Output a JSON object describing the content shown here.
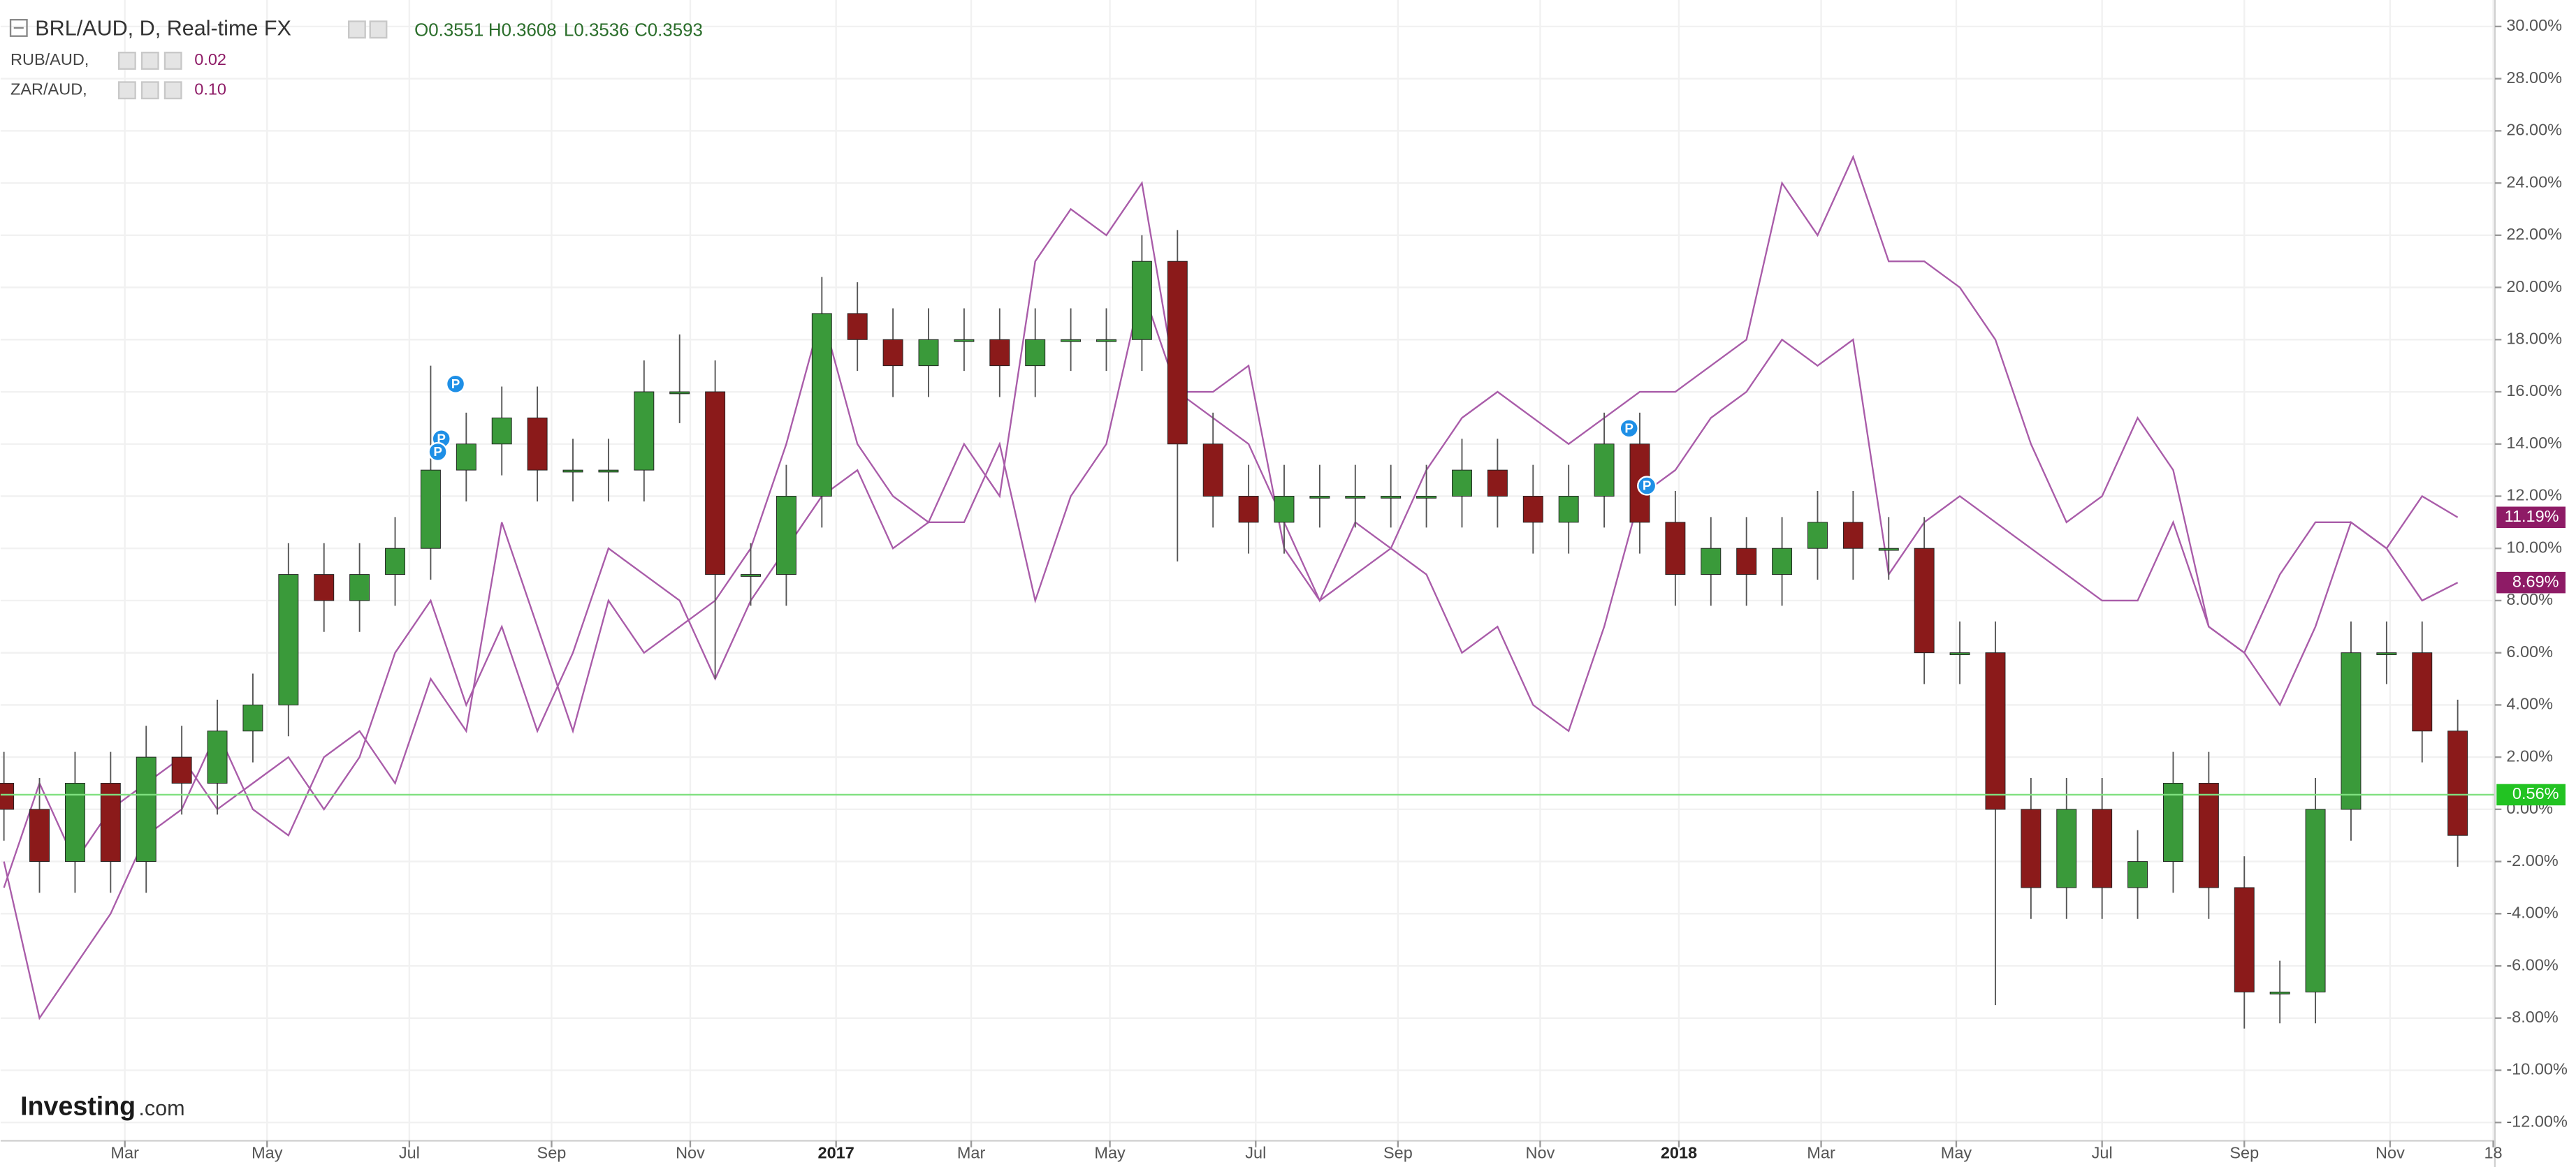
{
  "chart_data": {
    "type": "candlestick",
    "title": "BRL/AUD, D, Real-time FX",
    "ohlc_labels": [
      "O0.3551",
      "H0.3608",
      "L0.3536",
      "C0.3593"
    ],
    "up_color": "#3a9a3a",
    "down_color": "#8b1a1a",
    "open": [
      1,
      0,
      -2,
      1,
      -2,
      2,
      1,
      3,
      4,
      9,
      8,
      9,
      10,
      13,
      14,
      15,
      13,
      13,
      13,
      16,
      16,
      9,
      9,
      12,
      19,
      18,
      17,
      18,
      18,
      17,
      18,
      18,
      18,
      21,
      14,
      12,
      11,
      12,
      12,
      12,
      12,
      12,
      13,
      12,
      11,
      12,
      14,
      11,
      9,
      10,
      9,
      10,
      11,
      10,
      10,
      6,
      6,
      0,
      -3,
      0,
      -3,
      -2,
      1,
      -3,
      -7,
      -7,
      0,
      6,
      6,
      3
    ],
    "high": [
      2.2,
      1.2,
      2.2,
      2.2,
      3.2,
      3.2,
      4.2,
      5.2,
      10.2,
      10.2,
      10.2,
      11.2,
      17,
      15.2,
      16.2,
      16.2,
      14.2,
      14.2,
      17.2,
      18.2,
      17.2,
      10.2,
      13.2,
      20.4,
      20.2,
      19.2,
      19.2,
      19.2,
      19.2,
      19.2,
      19.2,
      19.2,
      22,
      22.2,
      15.2,
      13.2,
      13.2,
      13.2,
      13.2,
      13.2,
      13.2,
      14.2,
      14.2,
      13.2,
      13.2,
      15.2,
      15.2,
      12.2,
      11.2,
      11.2,
      11.2,
      12.2,
      12.2,
      11.2,
      11.2,
      7.2,
      7.2,
      1.2,
      1.2,
      1.2,
      -0.8,
      2.2,
      2.2,
      -1.8,
      -5.8,
      1.2,
      7.2,
      7.2,
      7.2,
      4.2
    ],
    "low": [
      -1.2,
      -3.2,
      -3.2,
      -3.2,
      -3.2,
      -0.2,
      -0.2,
      1.8,
      2.8,
      6.8,
      6.8,
      7.8,
      8.8,
      11.8,
      12.8,
      11.8,
      11.8,
      11.8,
      11.8,
      14.8,
      5,
      7.8,
      7.8,
      10.8,
      16.8,
      15.8,
      15.8,
      16.8,
      15.8,
      15.8,
      16.8,
      16.8,
      16.8,
      9.5,
      10.8,
      9.8,
      9.8,
      10.8,
      10.8,
      10.8,
      10.8,
      10.8,
      10.8,
      9.8,
      9.8,
      10.8,
      9.8,
      7.8,
      7.8,
      7.8,
      7.8,
      8.8,
      8.8,
      8.8,
      4.8,
      4.8,
      -7.5,
      -4.2,
      -4.2,
      -4.2,
      -4.2,
      -3.2,
      -4.2,
      -8.4,
      -8.2,
      -8.2,
      -1.2,
      4.8,
      1.8,
      -2.2
    ],
    "close": [
      0,
      -2,
      1,
      -2,
      2,
      1,
      3,
      4,
      9,
      8,
      9,
      10,
      13,
      14,
      15,
      13,
      13,
      13,
      16,
      16,
      9,
      9,
      12,
      19,
      18,
      17,
      18,
      18,
      17,
      18,
      18,
      18,
      21,
      14,
      12,
      11,
      12,
      12,
      12,
      12,
      12,
      13,
      12,
      11,
      12,
      14,
      11,
      9,
      10,
      9,
      10,
      11,
      10,
      10,
      6,
      6,
      0,
      -3,
      0,
      -3,
      -2,
      1,
      -3,
      -7,
      -7,
      0,
      6,
      6,
      3,
      -1
    ],
    "series": [
      {
        "name": "RUB/AUD,",
        "legend_value": "0.02",
        "color": "#a95ca9",
        "tag_color": "#8e1b66",
        "values": [
          -3,
          1,
          -2,
          0,
          1,
          2,
          0,
          1,
          2,
          0,
          2,
          6,
          8,
          4,
          7,
          3,
          6,
          10,
          9,
          8,
          5,
          8,
          10,
          12,
          13,
          10,
          11,
          11,
          14,
          8,
          12,
          14,
          20,
          16,
          16,
          17,
          10,
          8,
          9,
          10,
          9,
          6,
          7,
          4,
          3,
          7,
          12,
          13,
          15,
          16,
          18,
          17,
          18,
          9,
          11,
          12,
          11,
          10,
          9,
          8,
          8,
          11,
          7,
          6,
          9,
          11,
          11,
          10,
          8,
          8.69
        ],
        "last_label": {
          "value": 8.69,
          "label": "8.69%"
        }
      },
      {
        "name": "ZAR/AUD,",
        "legend_value": "0.10",
        "color": "#a95ca9",
        "tag_color": "#8e1b66",
        "values": [
          -2,
          -8,
          -6,
          -4,
          -1,
          0,
          3,
          0,
          -1,
          2,
          3,
          1,
          5,
          3,
          11,
          7,
          3,
          8,
          6,
          7,
          8,
          10,
          14,
          19,
          14,
          12,
          11,
          14,
          12,
          21,
          23,
          22,
          24,
          16,
          15,
          14,
          11,
          8,
          11,
          10,
          13,
          15,
          16,
          15,
          14,
          15,
          16,
          16,
          17,
          18,
          24,
          22,
          25,
          21,
          21,
          20,
          18,
          14,
          11,
          12,
          15,
          13,
          7,
          6,
          4,
          7,
          11,
          10,
          12,
          11.19
        ],
        "last_label": {
          "value": 11.19,
          "label": "11.19%"
        }
      }
    ],
    "reference_line": {
      "value": 0.56,
      "label": "0.56%",
      "color": "#7fe07f",
      "tag_color": "#22c322"
    },
    "xlim": [
      0,
      70
    ],
    "xticks": [
      {
        "value": 3.4,
        "label": "Mar"
      },
      {
        "value": 7.4,
        "label": "May"
      },
      {
        "value": 11.4,
        "label": "Jul"
      },
      {
        "value": 15.4,
        "label": "Sep"
      },
      {
        "value": 19.3,
        "label": "Nov"
      },
      {
        "value": 23.4,
        "label": "2017"
      },
      {
        "value": 27.2,
        "label": "Mar"
      },
      {
        "value": 31.1,
        "label": "May"
      },
      {
        "value": 35.2,
        "label": "Jul"
      },
      {
        "value": 39.2,
        "label": "Sep"
      },
      {
        "value": 43.2,
        "label": "Nov"
      },
      {
        "value": 47.1,
        "label": "2018"
      },
      {
        "value": 51.1,
        "label": "Mar"
      },
      {
        "value": 54.9,
        "label": "May"
      },
      {
        "value": 59.0,
        "label": "Jul"
      },
      {
        "value": 63.0,
        "label": "Sep"
      },
      {
        "value": 67.1,
        "label": "Nov"
      },
      {
        "value": 70.0,
        "label": "18"
      }
    ],
    "ylim": [
      -12.7,
      30.7
    ],
    "yticks": [
      {
        "value": 30,
        "label": "30.00%"
      },
      {
        "value": 28,
        "label": "28.00%"
      },
      {
        "value": 26,
        "label": "26.00%"
      },
      {
        "value": 24,
        "label": "24.00%"
      },
      {
        "value": 22,
        "label": "22.00%"
      },
      {
        "value": 20,
        "label": "20.00%"
      },
      {
        "value": 18,
        "label": "18.00%"
      },
      {
        "value": 16,
        "label": "16.00%"
      },
      {
        "value": 14,
        "label": "14.00%"
      },
      {
        "value": 12,
        "label": "12.00%"
      },
      {
        "value": 10,
        "label": "10.00%"
      },
      {
        "value": 8,
        "label": "8.00%"
      },
      {
        "value": 6,
        "label": "6.00%"
      },
      {
        "value": 4,
        "label": "4.00%"
      },
      {
        "value": 2,
        "label": "2.00%"
      },
      {
        "value": 0,
        "label": "0.00%"
      },
      {
        "value": -2,
        "label": "-2.00%"
      },
      {
        "value": -4,
        "label": "-4.00%"
      },
      {
        "value": -6,
        "label": "-6.00%"
      },
      {
        "value": -8,
        "label": "-8.00%"
      },
      {
        "value": -10,
        "label": "-10.00%"
      },
      {
        "value": -12,
        "label": "-12.00%"
      }
    ],
    "grid": true,
    "annotations": [
      {
        "label": "P",
        "x": 12.7,
        "y": 16.3
      },
      {
        "label": "P",
        "x": 12.3,
        "y": 14.2
      },
      {
        "label": "P",
        "x": 12.2,
        "y": 13.7
      },
      {
        "label": "P",
        "x": 45.7,
        "y": 14.6
      },
      {
        "label": "P",
        "x": 46.2,
        "y": 12.4
      }
    ],
    "logo": {
      "name": "Investing",
      "suffix": ".com"
    }
  }
}
